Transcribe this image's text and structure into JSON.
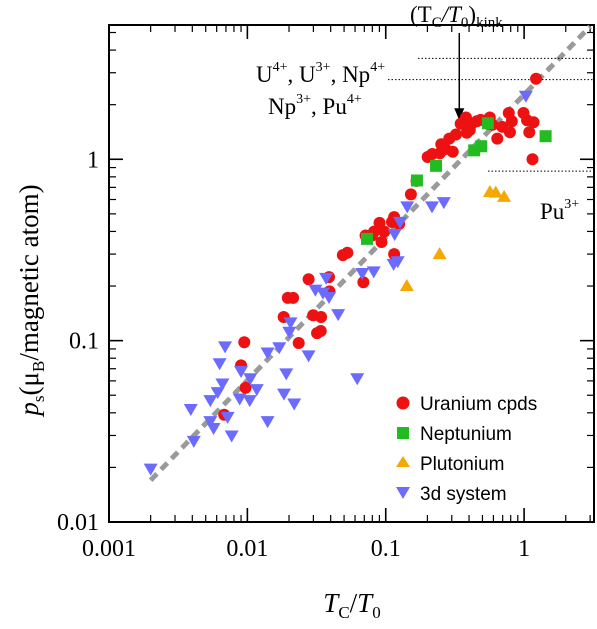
{
  "chart_data": {
    "type": "scatter",
    "x_scale": "log",
    "y_scale": "log",
    "xlim": [
      0.001,
      3.2
    ],
    "ylim": [
      0.01,
      5.5
    ],
    "x_ticks": [
      {
        "value": 0.001,
        "label": "0.001"
      },
      {
        "value": 0.01,
        "label": "0.01"
      },
      {
        "value": 0.1,
        "label": "0.1"
      },
      {
        "value": 1,
        "label": "1"
      }
    ],
    "y_ticks": [
      {
        "value": 0.01,
        "label": "0.01"
      },
      {
        "value": 0.1,
        "label": "0.1"
      },
      {
        "value": 1,
        "label": "1"
      }
    ],
    "xlabel": {
      "main": "T",
      "sub1": "C",
      "sep": "/",
      "main2": "T",
      "sub2": "0"
    },
    "ylabel": {
      "main": "p",
      "sub1": "s",
      "rest_open": "(μ",
      "sub2": "B",
      "rest_close": "/magnetic atom)"
    },
    "grid": false,
    "legend_position": "bottom-right",
    "fit_line": {
      "x": [
        0.002,
        3.0
      ],
      "y": [
        0.017,
        5.4
      ],
      "color": "#9a9a9a",
      "style": "dashed"
    },
    "annotations": {
      "kink": {
        "label_main": "(T",
        "label_sub1": "C",
        "label_sep": "/T",
        "label_sub2": "0",
        "label_close": ")",
        "label_sub3": "kink",
        "x": 0.34,
        "y_from": 5.2,
        "y_to": 1.6
      },
      "u_np": {
        "text": "U",
        "sup1": "4+",
        "text2": ", U",
        "sup2": "3+",
        "text3": ", Np",
        "sup3": "4+",
        "y": 3.6
      },
      "np_pu": {
        "text": "Np",
        "sup1": "3+",
        "text2": ", Pu",
        "sup2": "4+",
        "y": 2.75
      },
      "pu3": {
        "text": "Pu",
        "sup1": "3+",
        "y": 0.86
      }
    },
    "series": [
      {
        "name": "Uranium cpds",
        "marker": "circle",
        "color": "#ee1111",
        "points": [
          [
            0.0068,
            0.039
          ],
          [
            0.009,
            0.073
          ],
          [
            0.0095,
            0.098
          ],
          [
            0.0097,
            0.055
          ],
          [
            0.0183,
            0.135
          ],
          [
            0.0196,
            0.172
          ],
          [
            0.0214,
            0.172
          ],
          [
            0.0235,
            0.097
          ],
          [
            0.0277,
            0.218
          ],
          [
            0.0299,
            0.138
          ],
          [
            0.0319,
            0.11
          ],
          [
            0.0339,
            0.113
          ],
          [
            0.0341,
            0.135
          ],
          [
            0.0389,
            0.224
          ],
          [
            0.0392,
            0.187
          ],
          [
            0.049,
            0.296
          ],
          [
            0.0528,
            0.305
          ],
          [
            0.0689,
            0.21
          ],
          [
            0.0715,
            0.38
          ],
          [
            0.0796,
            0.38
          ],
          [
            0.0824,
            0.399
          ],
          [
            0.0902,
            0.446
          ],
          [
            0.0932,
            0.35
          ],
          [
            0.0977,
            0.399
          ],
          [
            0.111,
            0.451
          ],
          [
            0.115,
            0.48
          ],
          [
            0.115,
            0.3
          ],
          [
            0.125,
            0.44
          ],
          [
            0.152,
            0.64
          ],
          [
            0.167,
            0.76
          ],
          [
            0.201,
            1.03
          ],
          [
            0.217,
            1.07
          ],
          [
            0.246,
            1.08
          ],
          [
            0.252,
            1.21
          ],
          [
            0.27,
            1.14
          ],
          [
            0.288,
            1.3
          ],
          [
            0.305,
            1.1
          ],
          [
            0.322,
            1.37
          ],
          [
            0.348,
            1.57
          ],
          [
            0.38,
            1.7
          ],
          [
            0.385,
            1.4
          ],
          [
            0.405,
            1.45
          ],
          [
            0.418,
            1.57
          ],
          [
            0.455,
            1.62
          ],
          [
            0.485,
            1.65
          ],
          [
            0.545,
            1.57
          ],
          [
            0.565,
            1.7
          ],
          [
            0.59,
            1.55
          ],
          [
            0.64,
            1.3
          ],
          [
            0.695,
            1.51
          ],
          [
            0.775,
            1.8
          ],
          [
            0.79,
            1.41
          ],
          [
            0.815,
            1.62
          ],
          [
            0.99,
            1.8
          ],
          [
            1.05,
            1.64
          ],
          [
            1.09,
            1.41
          ],
          [
            1.15,
            1.0
          ],
          [
            1.17,
            1.6
          ],
          [
            1.22,
            2.78
          ]
        ]
      },
      {
        "name": "Neptunium",
        "marker": "square",
        "color": "#22bb22",
        "points": [
          [
            0.0732,
            0.364
          ],
          [
            0.168,
            0.764
          ],
          [
            0.231,
            0.92
          ],
          [
            0.436,
            1.12
          ],
          [
            0.49,
            1.18
          ],
          [
            0.547,
            1.58
          ],
          [
            1.43,
            1.34
          ]
        ]
      },
      {
        "name": "Plutonium",
        "marker": "triangle-up",
        "color": "#f5a800",
        "points": [
          [
            0.142,
            0.2
          ],
          [
            0.245,
            0.3
          ],
          [
            0.566,
            0.66
          ],
          [
            0.624,
            0.655
          ],
          [
            0.717,
            0.62
          ]
        ]
      },
      {
        "name": "3d system",
        "marker": "triangle-down",
        "color": "#6b6bff",
        "points": [
          [
            0.002,
            0.0197
          ],
          [
            0.0039,
            0.042
          ],
          [
            0.0041,
            0.028
          ],
          [
            0.0054,
            0.036
          ],
          [
            0.0054,
            0.047
          ],
          [
            0.0057,
            0.033
          ],
          [
            0.0061,
            0.052
          ],
          [
            0.0063,
            0.075
          ],
          [
            0.0066,
            0.058
          ],
          [
            0.0069,
            0.093
          ],
          [
            0.0072,
            0.038
          ],
          [
            0.0077,
            0.03
          ],
          [
            0.0088,
            0.048
          ],
          [
            0.009,
            0.068
          ],
          [
            0.0104,
            0.047
          ],
          [
            0.0105,
            0.062
          ],
          [
            0.0117,
            0.054
          ],
          [
            0.014,
            0.036
          ],
          [
            0.014,
            0.086
          ],
          [
            0.017,
            0.092
          ],
          [
            0.0184,
            0.051
          ],
          [
            0.0191,
            0.066
          ],
          [
            0.0201,
            0.112
          ],
          [
            0.0205,
            0.126
          ],
          [
            0.0218,
            0.045
          ],
          [
            0.0277,
            0.083
          ],
          [
            0.031,
            0.191
          ],
          [
            0.0352,
            0.184
          ],
          [
            0.0371,
            0.222
          ],
          [
            0.0389,
            0.174
          ],
          [
            0.0453,
            0.14
          ],
          [
            0.0622,
            0.062
          ],
          [
            0.0676,
            0.236
          ],
          [
            0.0819,
            0.241
          ],
          [
            0.114,
            0.265
          ],
          [
            0.116,
            0.387
          ],
          [
            0.122,
            0.274
          ],
          [
            0.127,
            0.452
          ],
          [
            0.143,
            0.55
          ],
          [
            0.216,
            0.55
          ],
          [
            0.263,
            0.58
          ],
          [
            1.03,
            2.24
          ]
        ]
      }
    ]
  }
}
